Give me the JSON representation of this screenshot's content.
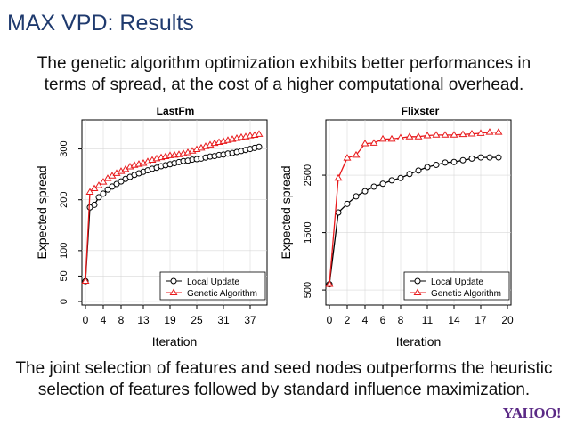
{
  "slide": {
    "title": "MAX VPD: Results",
    "intro_line1": "The genetic algorithm optimization exhibits better performances in",
    "intro_line2": "terms of spread, at the cost of a higher computational overhead.",
    "outro_line1": "The joint selection of features and seed nodes outperforms the heuristic",
    "outro_line2": "selection of features followed by standard influence maximization.",
    "logo": "YAHOO!"
  },
  "colors": {
    "title": "#1f3a6e",
    "local_update": "#000000",
    "genetic_algorithm": "#e8191b",
    "grid": "#d9d9d9",
    "logo": "#5b2a86"
  },
  "chart_data": [
    {
      "type": "line",
      "title": "LastFm",
      "xlabel": "Iteration",
      "ylabel": "Expected spread",
      "xlim": [
        0,
        40
      ],
      "ylim": [
        0,
        350
      ],
      "xticks": [
        0,
        4,
        8,
        13,
        19,
        25,
        31,
        37
      ],
      "yticks": [
        0,
        50,
        100,
        200,
        300
      ],
      "grid": true,
      "legend_position": "bottom-right",
      "series": [
        {
          "name": "Local Update",
          "marker": "circle",
          "x": [
            0,
            1,
            2,
            3,
            4,
            5,
            6,
            7,
            8,
            9,
            10,
            11,
            12,
            13,
            14,
            15,
            16,
            17,
            18,
            19,
            20,
            21,
            22,
            23,
            24,
            25,
            26,
            27,
            28,
            29,
            30,
            31,
            32,
            33,
            34,
            35,
            36,
            37,
            38,
            39
          ],
          "values": [
            40,
            185,
            190,
            205,
            212,
            220,
            226,
            231,
            236,
            241,
            245,
            249,
            252,
            255,
            258,
            261,
            263,
            266,
            268,
            270,
            272,
            274,
            276,
            277,
            279,
            280,
            281,
            283,
            285,
            286,
            288,
            289,
            291,
            292,
            294,
            296,
            298,
            300,
            302,
            304
          ]
        },
        {
          "name": "Genetic Algorithm",
          "marker": "triangle",
          "x": [
            0,
            1,
            2,
            3,
            4,
            5,
            6,
            7,
            8,
            9,
            10,
            11,
            12,
            13,
            14,
            15,
            16,
            17,
            18,
            19,
            20,
            21,
            22,
            23,
            24,
            25,
            26,
            27,
            28,
            29,
            30,
            31,
            32,
            33,
            34,
            35,
            36,
            37,
            38,
            39
          ],
          "values": [
            40,
            215,
            222,
            228,
            235,
            242,
            247,
            252,
            256,
            260,
            265,
            268,
            270,
            272,
            275,
            278,
            281,
            283,
            285,
            287,
            288,
            289,
            291,
            293,
            296,
            299,
            302,
            305,
            308,
            311,
            313,
            315,
            317,
            319,
            321,
            323,
            324,
            326,
            327,
            329
          ]
        }
      ]
    },
    {
      "type": "line",
      "title": "Flixster",
      "xlabel": "Iteration",
      "ylabel": "Expected spread",
      "xlim": [
        0,
        20
      ],
      "ylim": [
        300,
        3400
      ],
      "xticks": [
        0,
        2,
        4,
        6,
        8,
        11,
        14,
        17,
        20
      ],
      "xtick_labels": [
        "0",
        "2",
        "4",
        "6",
        "8",
        "11",
        "14",
        "17",
        "20"
      ],
      "yticks": [
        500,
        1500,
        2500
      ],
      "grid": true,
      "legend_position": "bottom-right",
      "series": [
        {
          "name": "Local Update",
          "marker": "circle",
          "x": [
            0,
            1,
            2,
            3,
            4,
            5,
            6,
            7,
            8,
            9,
            10,
            11,
            12,
            13,
            14,
            15,
            16,
            17,
            18,
            19
          ],
          "values": [
            600,
            1850,
            2000,
            2130,
            2220,
            2300,
            2350,
            2410,
            2450,
            2520,
            2580,
            2640,
            2680,
            2720,
            2730,
            2760,
            2790,
            2810,
            2810,
            2810
          ]
        },
        {
          "name": "Genetic Algorithm",
          "marker": "triangle",
          "x": [
            0,
            1,
            2,
            3,
            4,
            5,
            6,
            7,
            8,
            9,
            10,
            11,
            12,
            13,
            14,
            15,
            16,
            17,
            18,
            19
          ],
          "values": [
            600,
            2450,
            2800,
            2850,
            3050,
            3060,
            3130,
            3130,
            3150,
            3170,
            3170,
            3190,
            3200,
            3200,
            3200,
            3210,
            3220,
            3230,
            3250,
            3250
          ]
        }
      ]
    }
  ]
}
